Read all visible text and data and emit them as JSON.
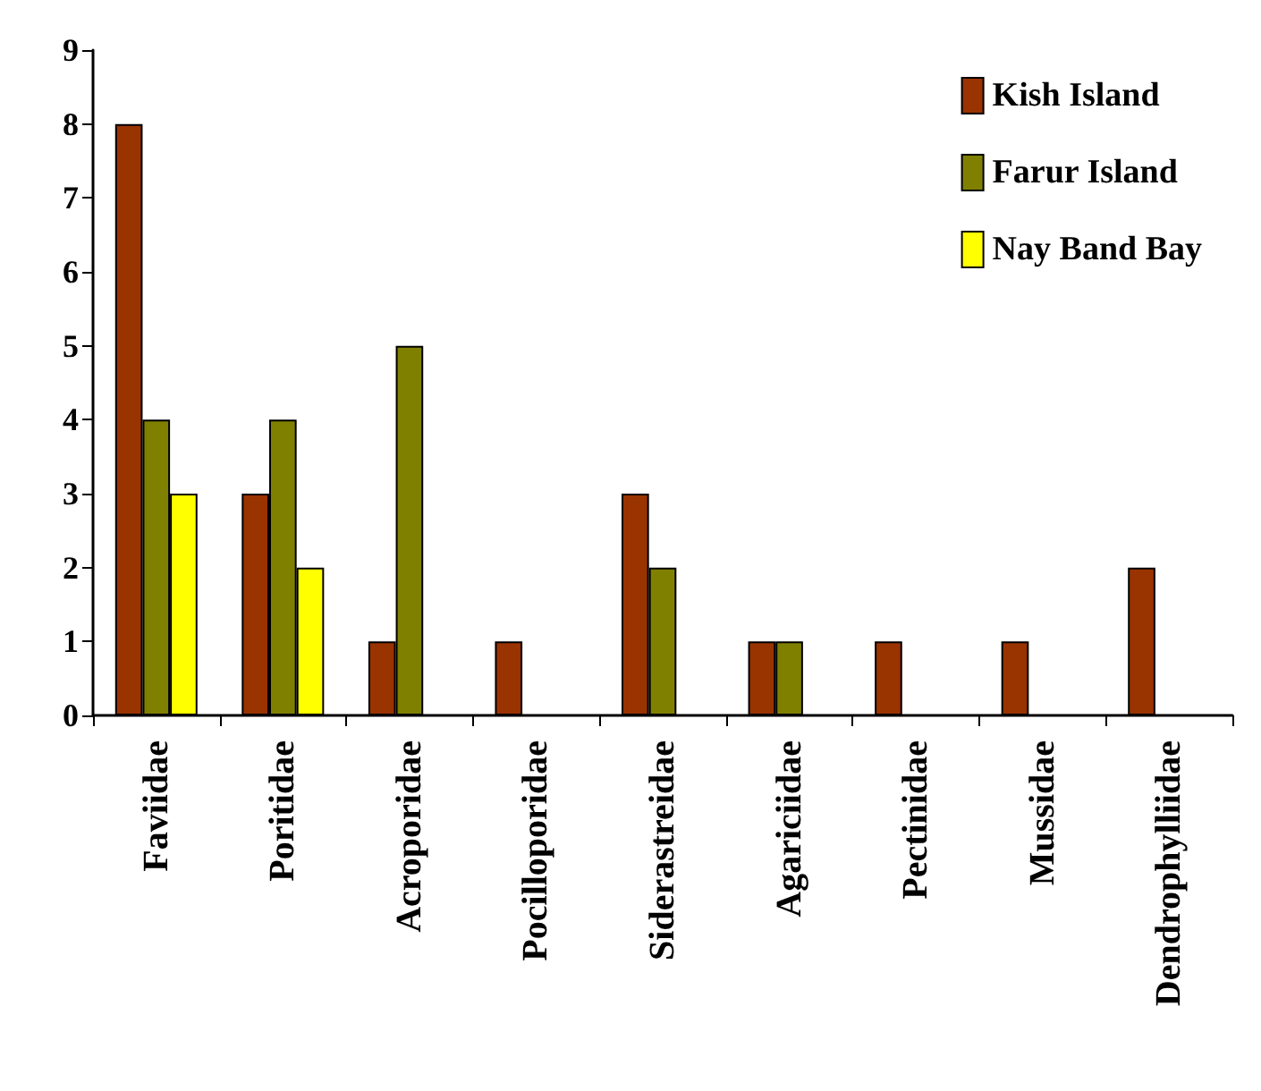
{
  "chart_data": {
    "type": "bar",
    "categories": [
      "Faviidae",
      "Poritidae",
      "Acroporidae",
      "Pocilloporidae",
      "Siderastreidae",
      "Agariciidae",
      "Pectinidae",
      "Mussidae",
      "Dendrophylliidae"
    ],
    "series": [
      {
        "name": "Kish Island",
        "color": "#993300",
        "values": [
          8,
          3,
          1,
          1,
          3,
          1,
          1,
          1,
          2
        ]
      },
      {
        "name": "Farur Island",
        "color": "#808000",
        "values": [
          4,
          4,
          5,
          0,
          2,
          1,
          0,
          0,
          0
        ]
      },
      {
        "name": "Nay Band Bay",
        "color": "#ffff00",
        "values": [
          3,
          2,
          0,
          0,
          0,
          0,
          0,
          0,
          0
        ]
      }
    ],
    "ylim": [
      0,
      9
    ],
    "yticks": [
      0,
      1,
      2,
      3,
      4,
      5,
      6,
      7,
      8,
      9
    ],
    "grid": false,
    "legend": "top right"
  }
}
